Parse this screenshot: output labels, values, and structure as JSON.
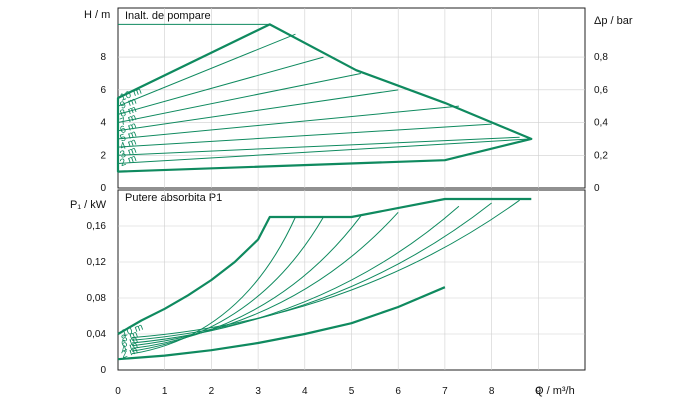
{
  "colors": {
    "curve": "#0f8a5f",
    "grid": "#cfcfcf",
    "axis": "#222222"
  },
  "chart_data": [
    {
      "type": "line",
      "title": "Inalt. de pompare",
      "xlabel": "",
      "ylabel": "H / m",
      "y2label": "Δp / bar",
      "xlim": [
        0,
        10
      ],
      "ylim": [
        0,
        11
      ],
      "x_ticks": [
        "0",
        "1",
        "2",
        "3",
        "4",
        "5",
        "6",
        "7",
        "8",
        "9"
      ],
      "y_ticks": [
        "2",
        "4",
        "6",
        "8"
      ],
      "y2_ticks": [
        "0,2",
        "0,4",
        "0,6",
        "0,8"
      ],
      "curve_labels": [
        "10 m",
        "9 m",
        "8 m",
        "7 m",
        "6 m",
        "5 m",
        "4 m",
        "3 m",
        "2 m"
      ],
      "envelope": [
        {
          "x": 0,
          "y": 5.5
        },
        {
          "x": 3.25,
          "y": 10.0
        },
        {
          "x": 5.1,
          "y": 7.2
        },
        {
          "x": 7.0,
          "y": 5.2
        },
        {
          "x": 8.85,
          "y": 3.0
        },
        {
          "x": 7.0,
          "y": 1.7
        },
        {
          "x": 0,
          "y": 1.0
        }
      ],
      "series": [
        {
          "name": "10 m",
          "x": [
            0,
            3.25
          ],
          "y": [
            10.0,
            10.0
          ]
        },
        {
          "name": "9 m",
          "x": [
            0,
            3.8
          ],
          "y": [
            5.0,
            9.4
          ]
        },
        {
          "name": "8 m",
          "x": [
            0,
            4.4
          ],
          "y": [
            4.5,
            8.0
          ]
        },
        {
          "name": "7 m",
          "x": [
            0,
            5.2
          ],
          "y": [
            4.0,
            7.0
          ]
        },
        {
          "name": "6 m",
          "x": [
            0,
            6.0
          ],
          "y": [
            3.5,
            6.0
          ]
        },
        {
          "name": "5 m",
          "x": [
            0,
            7.3
          ],
          "y": [
            3.0,
            5.0
          ]
        },
        {
          "name": "4 m",
          "x": [
            0,
            8.0
          ],
          "y": [
            2.5,
            3.9
          ]
        },
        {
          "name": "3 m",
          "x": [
            0,
            8.6
          ],
          "y": [
            2.0,
            3.1
          ]
        },
        {
          "name": "2 m",
          "x": [
            0,
            8.85
          ],
          "y": [
            1.5,
            3.0
          ]
        }
      ]
    },
    {
      "type": "line",
      "title": "Putere absorbita P1",
      "xlabel": "Q / m³/h",
      "ylabel": "P₁ / kW",
      "xlim": [
        0,
        10
      ],
      "ylim": [
        0,
        0.2
      ],
      "x_ticks": [
        "0",
        "1",
        "2",
        "3",
        "4",
        "5",
        "6",
        "7",
        "8",
        "9"
      ],
      "y_ticks": [
        "0",
        "0,04",
        "0,08",
        "0,12",
        "0,16"
      ],
      "curve_labels": [
        "10 m",
        "8 m",
        "6 m",
        "4 m",
        "2 m"
      ],
      "series": [
        {
          "name": "10 m",
          "x": [
            0,
            0.5,
            1,
            1.5,
            2,
            2.5,
            3,
            3.25,
            5.0,
            7.0,
            8.85
          ],
          "y": [
            0.04,
            0.055,
            0.068,
            0.083,
            0.1,
            0.12,
            0.145,
            0.17,
            0.17,
            0.19,
            0.19
          ]
        },
        {
          "name": "2 m",
          "x": [
            0,
            1,
            2,
            3,
            4,
            5,
            6,
            7
          ],
          "y": [
            0.012,
            0.016,
            0.022,
            0.03,
            0.04,
            0.052,
            0.07,
            0.092
          ]
        }
      ]
    }
  ]
}
